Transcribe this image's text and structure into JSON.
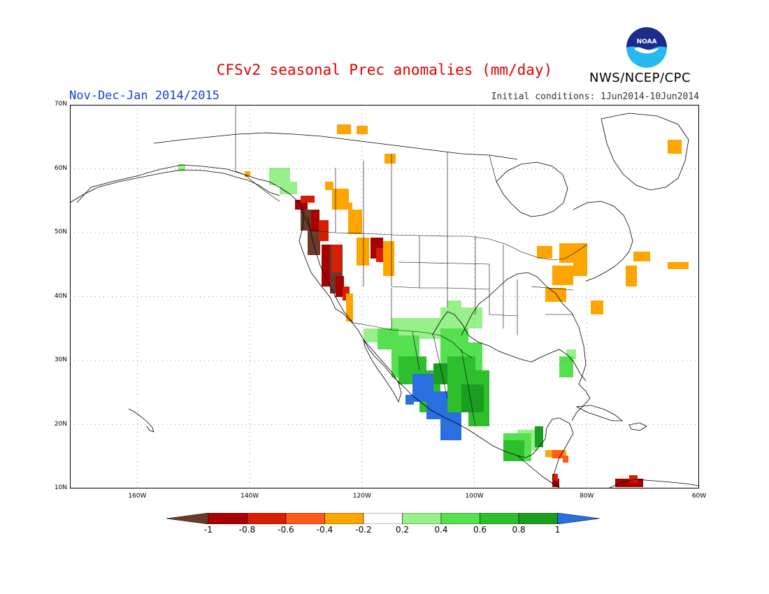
{
  "header": {
    "title": "CFSv2 seasonal Prec anomalies (mm/day)",
    "period": "Nov-Dec-Jan 2014/2015",
    "initial_conditions": "Initial conditions: 1Jun2014-10Jun2014",
    "agency": "NWS/NCEP/CPC",
    "logo_text": "NOAA"
  },
  "map": {
    "lon_range": [
      -172,
      -60
    ],
    "lat_range": [
      10,
      70
    ],
    "lat_labels": [
      "10N",
      "20N",
      "30N",
      "40N",
      "50N",
      "60N",
      "70N"
    ],
    "lon_labels": [
      "160W",
      "140W",
      "120W",
      "100W",
      "80W",
      "60W"
    ],
    "lat_values": [
      10,
      20,
      30,
      40,
      50,
      60,
      70
    ],
    "lon_values": [
      -160,
      -140,
      -120,
      -100,
      -80,
      -60
    ]
  },
  "colorbar": {
    "colors": [
      "#6b3b2a",
      "#a80000",
      "#d81e00",
      "#ff5a1a",
      "#ffa500",
      "#ffffff",
      "#98f08a",
      "#55e050",
      "#2ec02c",
      "#1a9e20",
      "#2a6fe0"
    ],
    "tick_labels": [
      "-1",
      "-0.8",
      "-0.6",
      "-0.4",
      "-0.2",
      "0.2",
      "0.4",
      "0.6",
      "0.8",
      "1"
    ]
  }
}
